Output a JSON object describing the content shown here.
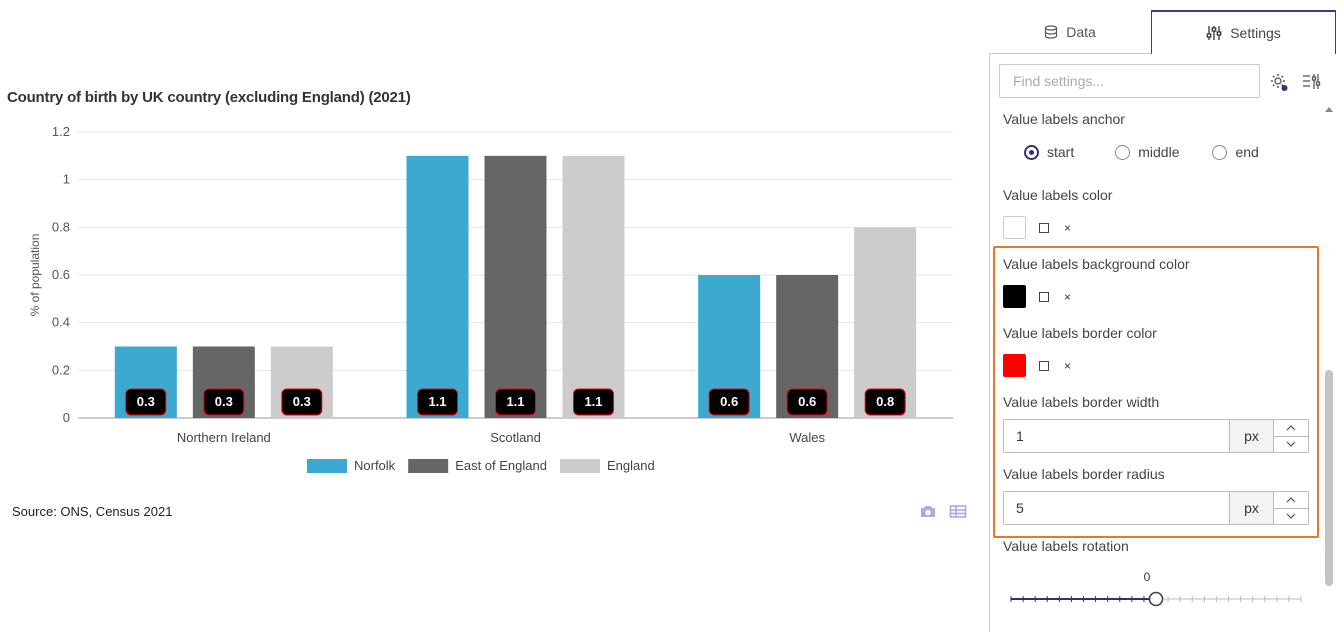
{
  "chart_data": {
    "type": "bar",
    "title": "Country of birth by UK country (excluding England) (2021)",
    "ylabel": "% of population",
    "xlabel": "",
    "categories": [
      "Northern Ireland",
      "Scotland",
      "Wales"
    ],
    "series": [
      {
        "name": "Norfolk",
        "color": "#3ba9d0",
        "values": [
          0.3,
          1.1,
          0.6
        ]
      },
      {
        "name": "East of England",
        "color": "#666666",
        "values": [
          0.3,
          1.1,
          0.6
        ]
      },
      {
        "name": "England",
        "color": "#cccccc",
        "values": [
          0.3,
          1.1,
          0.8
        ]
      }
    ],
    "ylim": [
      0,
      1.2
    ],
    "yticks": [
      "0",
      "0.2",
      "0.4",
      "0.6",
      "0.8",
      "1",
      "1.2"
    ],
    "grid": true,
    "legend": "bottom",
    "value_labels": {
      "anchor": "start",
      "color": "#ffffff",
      "background": "#000000",
      "border_color": "#ff0000",
      "border_width": 1,
      "border_radius": 5
    }
  },
  "source": "Source: ONS, Census 2021",
  "tabs": {
    "data": "Data",
    "settings": "Settings"
  },
  "search": {
    "placeholder": "Find settings..."
  },
  "settings": {
    "anchor_label": "Value labels anchor",
    "anchor_options": [
      "start",
      "middle",
      "end"
    ],
    "anchor_selected": "start",
    "color_label": "Value labels color",
    "color_value": "#ffffff",
    "bg_color_label": "Value labels background color",
    "bg_color_value": "#000000",
    "border_color_label": "Value labels border color",
    "border_color_value": "#ff0000",
    "clear_symbol": "×",
    "border_width_label": "Value labels border width",
    "border_width_value": "1",
    "border_radius_label": "Value labels border radius",
    "border_radius_value": "5",
    "unit": "px",
    "rotation_label": "Value labels rotation",
    "rotation_value": "0",
    "rotation_fraction": 0.5
  },
  "colors": {
    "accent": "#3b2e6e",
    "highlight": "#e8772e"
  }
}
